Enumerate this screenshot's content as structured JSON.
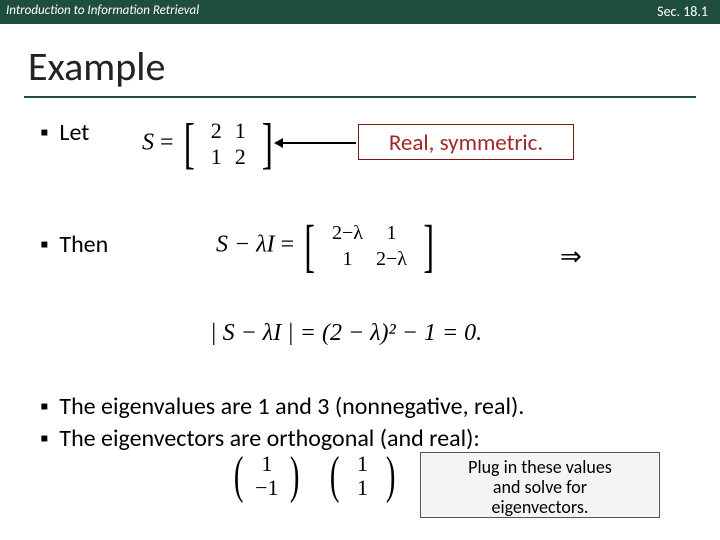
{
  "header": {
    "left": "Introduction to Information Retrieval",
    "right": "Sec. 18.1"
  },
  "title": "Example",
  "bullets": {
    "let": "Let",
    "then": "Then",
    "eig1": "The eigenvalues are 1 and 3 (nonnegative, real).",
    "eig2": "The eigenvectors are orthogonal (and real):"
  },
  "matrixS": {
    "lhs": "S",
    "rows": [
      [
        "2",
        "1"
      ],
      [
        "1",
        "2"
      ]
    ]
  },
  "callout1": "Real, symmetric.",
  "thenEq": {
    "lhs": "S − λI",
    "rows": [
      [
        "2−λ",
        "1"
      ],
      [
        "1",
        "2−λ"
      ]
    ]
  },
  "implies": "⇒",
  "detEq": "| S − λI | = (2 − λ)² − 1 = 0.",
  "vectors": {
    "v1": [
      "1",
      "−1"
    ],
    "v2": [
      "1",
      "1"
    ]
  },
  "callout2": {
    "l1": "Plug in these values",
    "l2": "and solve for",
    "l3": "eigenvectors."
  },
  "glyphs": {
    "bullet": "▪",
    "lbrack": "[",
    "rbrack": "]",
    "lparen": "(",
    "rparen": ")"
  }
}
